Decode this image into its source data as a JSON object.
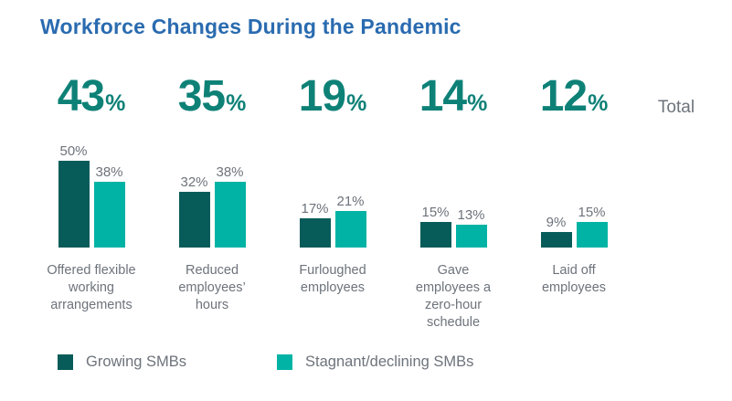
{
  "title": "Workforce Changes During the Pandemic",
  "total_heading": "Total",
  "percent_sign": "%",
  "colors": {
    "title_blue": "#2a6bb0",
    "big_number_teal": "#0e8177",
    "growing": "#075c59",
    "stagnant": "#00b3a4",
    "label_gray": "#6d737b"
  },
  "chart_data": {
    "type": "bar",
    "title": "Workforce Changes During the Pandemic",
    "unit": "%",
    "ylim": [
      0,
      50
    ],
    "grid": false,
    "legend_position": "bottom",
    "categories": [
      "Offered flexible working arrangements",
      "Reduced employees’ hours",
      "Furloughed employees",
      "Gave employees a zero-hour schedule",
      "Laid off employees"
    ],
    "series": [
      {
        "name": "Growing SMBs",
        "values": [
          50,
          32,
          17,
          15,
          9
        ]
      },
      {
        "name": "Stagnant/declining SMBs",
        "values": [
          38,
          38,
          21,
          13,
          15
        ]
      }
    ],
    "totals": [
      43,
      35,
      19,
      14,
      12
    ],
    "groups": [
      {
        "total": "43",
        "growing": 50,
        "stagnant": 38,
        "growing_label": "50%",
        "stagnant_label": "38%",
        "category": "Offered flexible\nworking\narrangements"
      },
      {
        "total": "35",
        "growing": 32,
        "stagnant": 38,
        "growing_label": "32%",
        "stagnant_label": "38%",
        "category": "Reduced\nemployees’\nhours"
      },
      {
        "total": "19",
        "growing": 17,
        "stagnant": 21,
        "growing_label": "17%",
        "stagnant_label": "21%",
        "category": "Furloughed\nemployees"
      },
      {
        "total": "14",
        "growing": 15,
        "stagnant": 13,
        "growing_label": "15%",
        "stagnant_label": "13%",
        "category": "Gave\nemployees a\nzero-hour\nschedule"
      },
      {
        "total": "12",
        "growing": 9,
        "stagnant": 15,
        "growing_label": "9%",
        "stagnant_label": "15%",
        "category": "Laid off\nemployees"
      }
    ]
  }
}
